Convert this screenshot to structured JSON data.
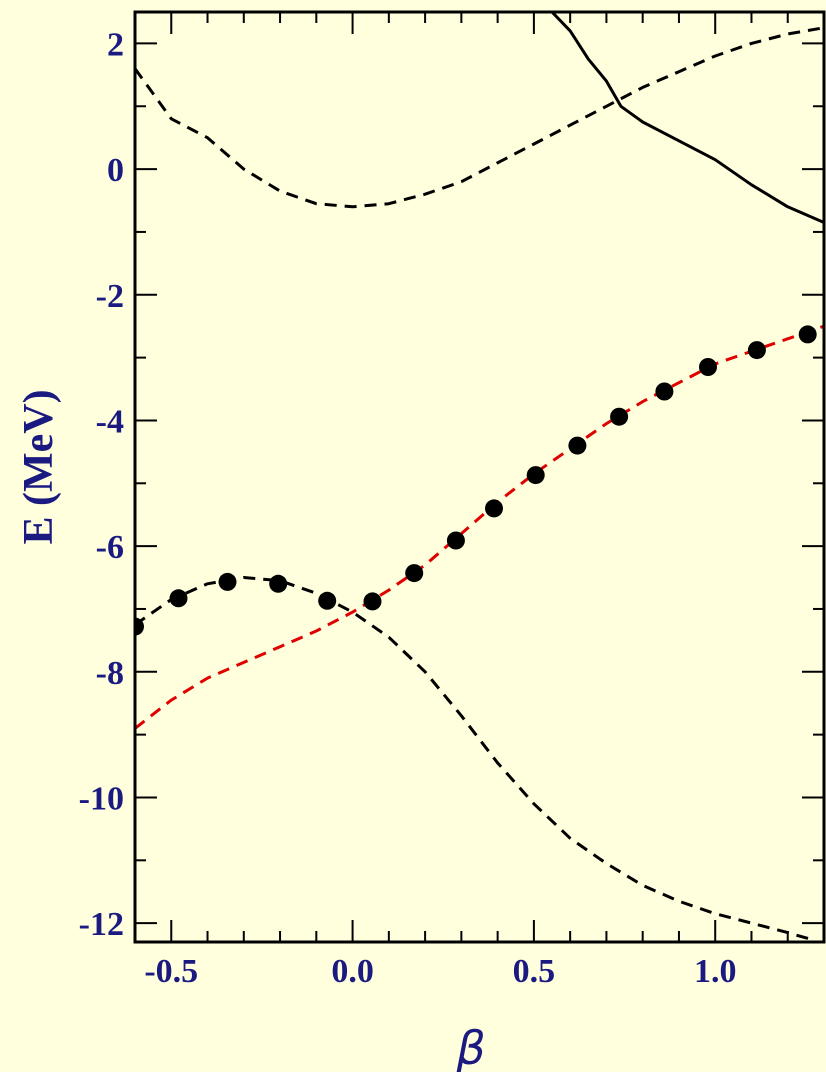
{
  "chart_data": {
    "type": "line",
    "title": "",
    "xlabel": "β",
    "ylabel": "E (MeV)",
    "xlim": [
      -0.6,
      1.3
    ],
    "ylim": [
      -12.3,
      2.5
    ],
    "x_ticks": [
      -0.5,
      0.0,
      0.5,
      1.0
    ],
    "x_tick_labels": [
      "-0.5",
      "0.0",
      "0.5",
      "1.0"
    ],
    "y_ticks": [
      2,
      0,
      -2,
      -4,
      -6,
      -8,
      -10,
      -12
    ],
    "y_tick_labels": [
      "2",
      "0",
      "-2",
      "-4",
      "-6",
      "-8",
      "-10",
      "-12"
    ],
    "grid": false,
    "background_color": "#ffffde",
    "label_color": "#1a1a80",
    "series": [
      {
        "style": "dashed",
        "color": "#000000",
        "points": [
          [
            -0.6,
            1.6
          ],
          [
            -0.5,
            0.8
          ],
          [
            -0.4,
            0.5
          ],
          [
            -0.3,
            0.0
          ],
          [
            -0.2,
            -0.35
          ],
          [
            -0.1,
            -0.55
          ],
          [
            0.0,
            -0.6
          ],
          [
            0.1,
            -0.55
          ],
          [
            0.2,
            -0.4
          ],
          [
            0.3,
            -0.2
          ],
          [
            0.4,
            0.1
          ],
          [
            0.5,
            0.4
          ],
          [
            0.6,
            0.7
          ],
          [
            0.7,
            1.0
          ],
          [
            0.8,
            1.3
          ],
          [
            0.9,
            1.55
          ],
          [
            1.0,
            1.8
          ],
          [
            1.1,
            2.0
          ],
          [
            1.2,
            2.15
          ],
          [
            1.3,
            2.25
          ]
        ]
      },
      {
        "style": "solid",
        "color": "#000000",
        "points": [
          [
            0.55,
            2.5
          ],
          [
            0.6,
            2.2
          ],
          [
            0.65,
            1.75
          ],
          [
            0.7,
            1.4
          ],
          [
            0.74,
            1.0
          ],
          [
            0.8,
            0.75
          ],
          [
            0.9,
            0.45
          ],
          [
            1.0,
            0.15
          ],
          [
            1.1,
            -0.25
          ],
          [
            1.2,
            -0.6
          ],
          [
            1.3,
            -0.85
          ]
        ]
      },
      {
        "style": "dashed",
        "color": "#e00000",
        "points": [
          [
            -0.6,
            -8.9
          ],
          [
            -0.5,
            -8.45
          ],
          [
            -0.4,
            -8.1
          ],
          [
            -0.3,
            -7.85
          ],
          [
            -0.2,
            -7.6
          ],
          [
            -0.1,
            -7.35
          ],
          [
            0.0,
            -7.05
          ],
          [
            0.1,
            -6.7
          ],
          [
            0.2,
            -6.3
          ],
          [
            0.3,
            -5.8
          ],
          [
            0.4,
            -5.3
          ],
          [
            0.5,
            -4.85
          ],
          [
            0.6,
            -4.45
          ],
          [
            0.7,
            -4.05
          ],
          [
            0.8,
            -3.7
          ],
          [
            0.9,
            -3.4
          ],
          [
            1.0,
            -3.1
          ],
          [
            1.1,
            -2.9
          ],
          [
            1.2,
            -2.7
          ],
          [
            1.3,
            -2.5
          ]
        ]
      },
      {
        "style": "dashed",
        "color": "#000000",
        "points": [
          [
            -0.6,
            -7.25
          ],
          [
            -0.5,
            -6.85
          ],
          [
            -0.4,
            -6.6
          ],
          [
            -0.3,
            -6.5
          ],
          [
            -0.2,
            -6.55
          ],
          [
            -0.1,
            -6.75
          ],
          [
            0.0,
            -7.05
          ],
          [
            0.1,
            -7.45
          ],
          [
            0.2,
            -8.0
          ],
          [
            0.3,
            -8.7
          ],
          [
            0.4,
            -9.45
          ],
          [
            0.5,
            -10.1
          ],
          [
            0.6,
            -10.65
          ],
          [
            0.7,
            -11.05
          ],
          [
            0.8,
            -11.4
          ],
          [
            0.9,
            -11.65
          ],
          [
            1.0,
            -11.85
          ],
          [
            1.1,
            -12.0
          ],
          [
            1.2,
            -12.15
          ],
          [
            1.26,
            -12.25
          ]
        ]
      },
      {
        "style": "markers",
        "color": "#000000",
        "points": [
          [
            -0.6,
            -7.28
          ],
          [
            -0.48,
            -6.83
          ],
          [
            -0.345,
            -6.57
          ],
          [
            -0.205,
            -6.6
          ],
          [
            -0.07,
            -6.87
          ],
          [
            0.055,
            -6.88
          ],
          [
            0.17,
            -6.43
          ],
          [
            0.285,
            -5.91
          ],
          [
            0.39,
            -5.4
          ],
          [
            0.505,
            -4.87
          ],
          [
            0.62,
            -4.4
          ],
          [
            0.735,
            -3.94
          ],
          [
            0.86,
            -3.54
          ],
          [
            0.98,
            -3.15
          ],
          [
            1.115,
            -2.88
          ],
          [
            1.255,
            -2.63
          ]
        ]
      }
    ]
  }
}
